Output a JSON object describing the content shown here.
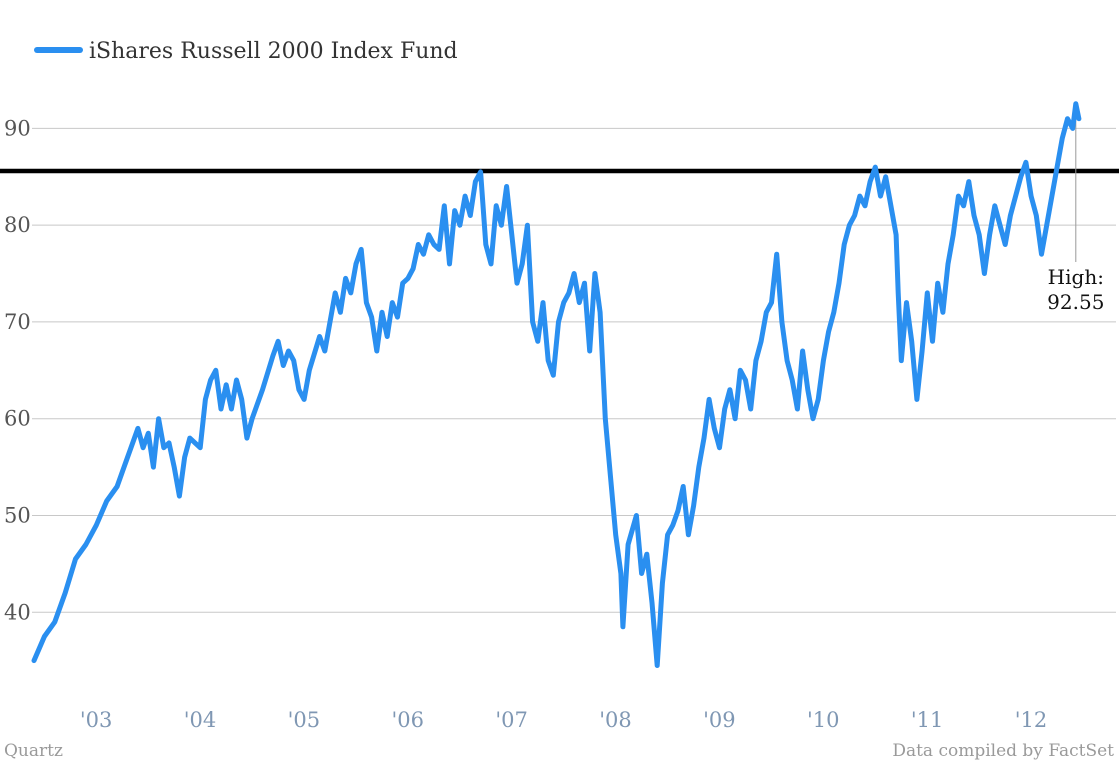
{
  "chart_data": {
    "type": "line",
    "title": "",
    "xlabel": "",
    "ylabel": "",
    "x_range": [
      2002.7,
      2012.78
    ],
    "ylim": [
      33,
      95
    ],
    "yticks": [
      40,
      50,
      60,
      70,
      80,
      90
    ],
    "xticks": [
      {
        "value": 2003,
        "label": "'03"
      },
      {
        "value": 2004,
        "label": "'04"
      },
      {
        "value": 2005,
        "label": "'05"
      },
      {
        "value": 2006,
        "label": "'06"
      },
      {
        "value": 2007,
        "label": "'07"
      },
      {
        "value": 2008,
        "label": "'08"
      },
      {
        "value": 2009,
        "label": "'09"
      },
      {
        "value": 2010,
        "label": "'10"
      },
      {
        "value": 2011,
        "label": "'11"
      },
      {
        "value": 2012,
        "label": "'12"
      }
    ],
    "grid": true,
    "legend_position": "top-left",
    "series": [
      {
        "name": "iShares Russell 2000 Index Fund",
        "color": "#2a8ff0",
        "points": [
          [
            2002.7,
            35
          ],
          [
            2002.8,
            37.5
          ],
          [
            2002.9,
            39
          ],
          [
            2003.0,
            42
          ],
          [
            2003.1,
            45.5
          ],
          [
            2003.2,
            47
          ],
          [
            2003.3,
            49
          ],
          [
            2003.4,
            51.5
          ],
          [
            2003.5,
            53
          ],
          [
            2003.6,
            56
          ],
          [
            2003.7,
            59
          ],
          [
            2003.75,
            57
          ],
          [
            2003.8,
            58.5
          ],
          [
            2003.85,
            55
          ],
          [
            2003.9,
            60
          ],
          [
            2003.95,
            57
          ],
          [
            2004.0,
            57.5
          ],
          [
            2004.05,
            55
          ],
          [
            2004.1,
            52
          ],
          [
            2004.15,
            56
          ],
          [
            2004.2,
            58
          ],
          [
            2004.3,
            57
          ],
          [
            2004.35,
            62
          ],
          [
            2004.4,
            64
          ],
          [
            2004.45,
            65
          ],
          [
            2004.5,
            61
          ],
          [
            2004.55,
            63.5
          ],
          [
            2004.6,
            61
          ],
          [
            2004.65,
            64
          ],
          [
            2004.7,
            62
          ],
          [
            2004.75,
            58
          ],
          [
            2004.8,
            60
          ],
          [
            2004.9,
            63
          ],
          [
            2005.0,
            66.5
          ],
          [
            2005.05,
            68
          ],
          [
            2005.1,
            65.5
          ],
          [
            2005.15,
            67
          ],
          [
            2005.2,
            66
          ],
          [
            2005.25,
            63
          ],
          [
            2005.3,
            62
          ],
          [
            2005.35,
            65
          ],
          [
            2005.45,
            68.5
          ],
          [
            2005.5,
            67
          ],
          [
            2005.55,
            70
          ],
          [
            2005.6,
            73
          ],
          [
            2005.65,
            71
          ],
          [
            2005.7,
            74.5
          ],
          [
            2005.75,
            73
          ],
          [
            2005.8,
            76
          ],
          [
            2005.85,
            77.5
          ],
          [
            2005.9,
            72
          ],
          [
            2005.95,
            70.5
          ],
          [
            2006.0,
            67
          ],
          [
            2006.05,
            71
          ],
          [
            2006.1,
            68.5
          ],
          [
            2006.15,
            72
          ],
          [
            2006.2,
            70.5
          ],
          [
            2006.25,
            74
          ],
          [
            2006.3,
            74.5
          ],
          [
            2006.35,
            75.5
          ],
          [
            2006.4,
            78
          ],
          [
            2006.45,
            77
          ],
          [
            2006.5,
            79
          ],
          [
            2006.55,
            78
          ],
          [
            2006.6,
            77.5
          ],
          [
            2006.65,
            82
          ],
          [
            2006.7,
            76
          ],
          [
            2006.75,
            81.5
          ],
          [
            2006.8,
            80
          ],
          [
            2006.85,
            83
          ],
          [
            2006.9,
            81
          ],
          [
            2006.95,
            84.5
          ],
          [
            2007.0,
            85.5
          ],
          [
            2007.05,
            78
          ],
          [
            2007.1,
            76
          ],
          [
            2007.15,
            82
          ],
          [
            2007.2,
            80
          ],
          [
            2007.25,
            84
          ],
          [
            2007.3,
            79
          ],
          [
            2007.35,
            74
          ],
          [
            2007.4,
            76
          ],
          [
            2007.45,
            80
          ],
          [
            2007.5,
            70
          ],
          [
            2007.55,
            68
          ],
          [
            2007.6,
            72
          ],
          [
            2007.65,
            66
          ],
          [
            2007.7,
            64.5
          ],
          [
            2007.75,
            70
          ],
          [
            2007.8,
            72
          ],
          [
            2007.85,
            73
          ],
          [
            2007.9,
            75
          ],
          [
            2007.95,
            72
          ],
          [
            2008.0,
            74
          ],
          [
            2008.05,
            67
          ],
          [
            2008.1,
            75
          ],
          [
            2008.15,
            71
          ],
          [
            2008.2,
            60
          ],
          [
            2008.25,
            54
          ],
          [
            2008.3,
            48
          ],
          [
            2008.35,
            44
          ],
          [
            2008.37,
            38.5
          ],
          [
            2008.42,
            47
          ],
          [
            2008.5,
            50
          ],
          [
            2008.55,
            44
          ],
          [
            2008.6,
            46
          ],
          [
            2008.65,
            41
          ],
          [
            2008.7,
            34.5
          ],
          [
            2008.75,
            43
          ],
          [
            2008.8,
            48
          ],
          [
            2008.85,
            49
          ],
          [
            2008.9,
            50.5
          ],
          [
            2008.95,
            53
          ],
          [
            2009.0,
            48
          ],
          [
            2009.05,
            51
          ],
          [
            2009.1,
            55
          ],
          [
            2009.15,
            58
          ],
          [
            2009.2,
            62
          ],
          [
            2009.25,
            59
          ],
          [
            2009.3,
            57
          ],
          [
            2009.35,
            61
          ],
          [
            2009.4,
            63
          ],
          [
            2009.45,
            60
          ],
          [
            2009.5,
            65
          ],
          [
            2009.55,
            64
          ],
          [
            2009.6,
            61
          ],
          [
            2009.65,
            66
          ],
          [
            2009.7,
            68
          ],
          [
            2009.75,
            71
          ],
          [
            2009.8,
            72
          ],
          [
            2009.85,
            77
          ],
          [
            2009.9,
            70
          ],
          [
            2009.95,
            66
          ],
          [
            2010.0,
            64
          ],
          [
            2010.05,
            61
          ],
          [
            2010.1,
            67
          ],
          [
            2010.15,
            63
          ],
          [
            2010.2,
            60
          ],
          [
            2010.25,
            62
          ],
          [
            2010.3,
            66
          ],
          [
            2010.35,
            69
          ],
          [
            2010.4,
            71
          ],
          [
            2010.45,
            74
          ],
          [
            2010.5,
            78
          ],
          [
            2010.55,
            80
          ],
          [
            2010.6,
            81
          ],
          [
            2010.65,
            83
          ],
          [
            2010.7,
            82
          ],
          [
            2010.75,
            84.5
          ],
          [
            2010.8,
            86
          ],
          [
            2010.85,
            83
          ],
          [
            2010.9,
            85
          ],
          [
            2010.95,
            82
          ],
          [
            2011.0,
            79
          ],
          [
            2011.02,
            73
          ],
          [
            2011.05,
            66
          ],
          [
            2011.1,
            72
          ],
          [
            2011.15,
            68
          ],
          [
            2011.2,
            62
          ],
          [
            2011.25,
            67
          ],
          [
            2011.3,
            73
          ],
          [
            2011.35,
            68
          ],
          [
            2011.4,
            74
          ],
          [
            2011.45,
            71
          ],
          [
            2011.5,
            76
          ],
          [
            2011.55,
            79
          ],
          [
            2011.6,
            83
          ],
          [
            2011.65,
            82
          ],
          [
            2011.7,
            84.5
          ],
          [
            2011.75,
            81
          ],
          [
            2011.8,
            79
          ],
          [
            2011.85,
            75
          ],
          [
            2011.9,
            79
          ],
          [
            2011.95,
            82
          ],
          [
            2012.0,
            80
          ],
          [
            2012.05,
            78
          ],
          [
            2012.1,
            81
          ],
          [
            2012.15,
            83
          ],
          [
            2012.2,
            85
          ],
          [
            2012.25,
            86.5
          ],
          [
            2012.3,
            83
          ],
          [
            2012.35,
            81
          ],
          [
            2012.4,
            77
          ],
          [
            2012.45,
            80
          ],
          [
            2012.5,
            83
          ],
          [
            2012.55,
            86
          ],
          [
            2012.6,
            89
          ],
          [
            2012.65,
            91
          ],
          [
            2012.7,
            90
          ],
          [
            2012.73,
            92.55
          ],
          [
            2012.76,
            91
          ]
        ]
      }
    ],
    "reference_line": {
      "y": 85.6,
      "color": "#000000"
    },
    "annotation": {
      "label_line1": "High:",
      "label_line2": "92.55",
      "x": 2012.73,
      "y": 92.55
    }
  },
  "credits": {
    "source_left": "Quartz",
    "source_right": "Data compiled by FactSet"
  }
}
